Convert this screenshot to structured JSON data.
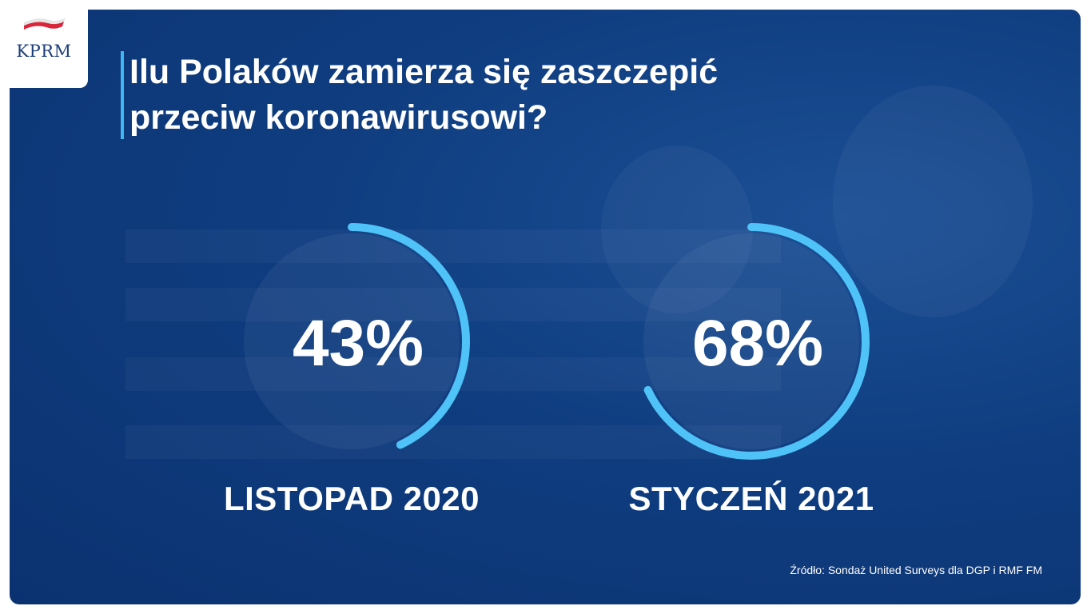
{
  "logo": {
    "text": "KPRM"
  },
  "title_line1": "Ilu Polaków zamierza się zaszczepić",
  "title_line2": "przeciw koronawirusowi?",
  "chart_data": {
    "type": "donut",
    "title": "Ilu Polaków zamierza się zaszczepić przeciw koronawirusowi?",
    "categories": [
      "LISTOPAD 2020",
      "STYCZEŃ 2021"
    ],
    "values": [
      43,
      68
    ],
    "unit": "%",
    "data_labels": [
      "43%",
      "68%"
    ],
    "max": 100
  },
  "source": "Źródło: Sondaż United Surveys dla DGP i RMF FM",
  "colors": {
    "background": "#0f3d80",
    "arc": "#4fc3f7",
    "text": "#ffffff",
    "accent_bar": "#3fb8f0",
    "flag_red": "#d9253a",
    "logo_text": "#1b3d7a"
  }
}
